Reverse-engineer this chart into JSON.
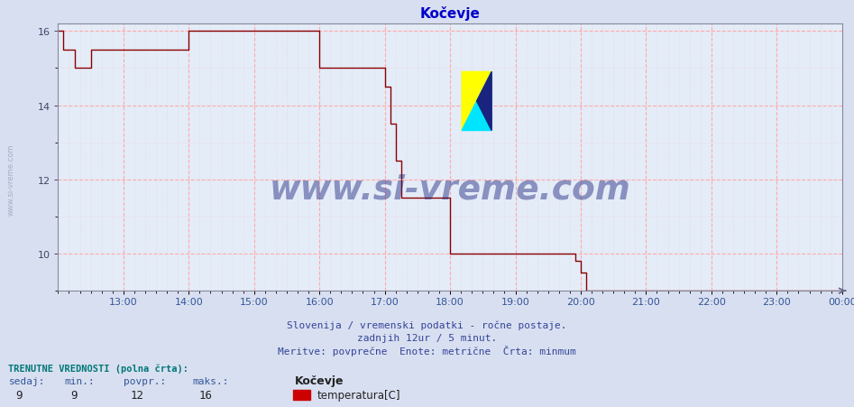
{
  "title": "Kočevje",
  "title_color": "#0000cc",
  "bg_color": "#d8dff0",
  "plot_bg_color": "#e4ecf8",
  "line_color": "#8b0000",
  "line_width": 1.0,
  "grid_major_color": "#ffaaaa",
  "grid_minor_color": "#e8cccc",
  "ylim": [
    9.0,
    16.2
  ],
  "yticks": [
    10,
    12,
    14,
    16
  ],
  "xlim": [
    12.0,
    24.0
  ],
  "xtick_positions": [
    13,
    14,
    15,
    16,
    17,
    18,
    19,
    20,
    21,
    22,
    23,
    24
  ],
  "xtick_labels": [
    "13:00",
    "14:00",
    "15:00",
    "16:00",
    "17:00",
    "18:00",
    "19:00",
    "20:00",
    "21:00",
    "22:00",
    "23:00",
    "00:00"
  ],
  "sub_text1": "Slovenija / vremenski podatki - ročne postaje.",
  "sub_text2": "zadnjih 12ur / 5 minut.",
  "sub_text3": "Meritve: povprečne  Enote: metrične  Črta: minmum",
  "sub_text_color": "#334499",
  "bottom_label1": "TRENUTNE VREDNOSTI (polna črta):",
  "bottom_col_labels": [
    "sedaj:",
    "min.:",
    "povpr.:",
    "maks.:"
  ],
  "bottom_col_values": [
    "9",
    "9",
    "12",
    "16"
  ],
  "legend_station": "Kočevje",
  "legend_series": "temperatura[C]",
  "legend_color": "#cc0000",
  "left_wm": "www.si-vreme.com",
  "left_wm_color": "#aaaacc",
  "watermark": "www.si-vreme.com",
  "watermark_color": "#1a237e",
  "watermark_alpha": 0.45,
  "data_x": [
    12.0,
    12.083,
    12.25,
    12.333,
    12.5,
    12.583,
    13.0,
    13.75,
    14.0,
    14.917,
    15.0,
    15.917,
    16.0,
    16.083,
    16.917,
    17.0,
    17.083,
    17.167,
    17.25,
    17.333,
    17.917,
    18.0,
    18.917,
    19.0,
    19.833,
    19.917,
    20.0,
    20.083,
    20.167,
    20.25,
    24.0
  ],
  "data_y": [
    16.0,
    15.5,
    15.0,
    15.0,
    15.5,
    15.5,
    15.5,
    15.5,
    16.0,
    16.0,
    16.0,
    16.0,
    15.0,
    15.0,
    15.0,
    14.5,
    13.5,
    12.5,
    11.5,
    11.5,
    11.5,
    10.0,
    10.0,
    10.0,
    10.0,
    9.8,
    9.5,
    9.0,
    9.0,
    9.0,
    9.0
  ]
}
